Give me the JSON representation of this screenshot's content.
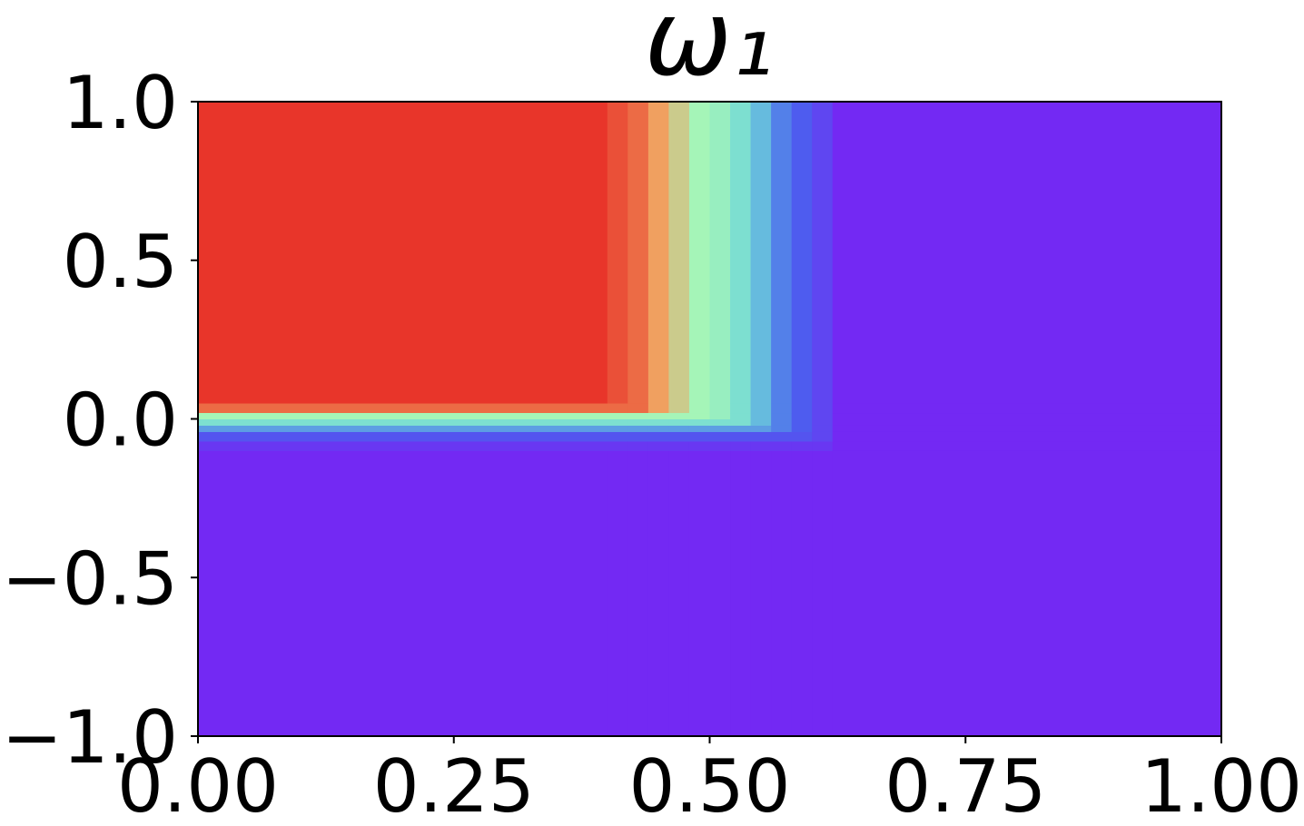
{
  "chart_data": {
    "type": "heatmap",
    "title": "ω₁",
    "x": [
      0,
      0.4,
      0.42,
      0.44,
      0.46,
      0.48,
      0.5,
      0.52,
      0.54,
      0.56,
      0.58,
      0.6,
      0.62,
      1.0
    ],
    "y": [
      -1,
      -0.1,
      -0.07,
      -0.04,
      -0.02,
      0,
      0.02,
      0.05,
      1.0
    ],
    "z": [
      [
        0,
        0,
        0,
        0,
        0,
        0,
        0,
        0,
        0,
        0,
        0,
        0,
        0
      ],
      [
        0.05,
        0.05,
        0.05,
        0.05,
        0.05,
        0.05,
        0.05,
        0.05,
        0.05,
        0.05,
        0.05,
        0.05,
        0
      ],
      [
        0.15,
        0.15,
        0.15,
        0.15,
        0.15,
        0.15,
        0.15,
        0.15,
        0.15,
        0.15,
        0.15,
        0.1,
        0
      ],
      [
        0.3,
        0.3,
        0.3,
        0.3,
        0.3,
        0.3,
        0.3,
        0.3,
        0.3,
        0.25,
        0.18,
        0.1,
        0
      ],
      [
        0.45,
        0.45,
        0.45,
        0.45,
        0.45,
        0.45,
        0.45,
        0.45,
        0.35,
        0.25,
        0.18,
        0.1,
        0
      ],
      [
        0.6,
        0.6,
        0.6,
        0.6,
        0.6,
        0.6,
        0.55,
        0.45,
        0.35,
        0.25,
        0.18,
        0.1,
        0
      ],
      [
        0.9,
        0.9,
        0.9,
        0.8,
        0.7,
        0.6,
        0.55,
        0.45,
        0.35,
        0.25,
        0.18,
        0.1,
        0
      ],
      [
        1,
        0.95,
        0.9,
        0.8,
        0.7,
        0.6,
        0.55,
        0.45,
        0.35,
        0.25,
        0.18,
        0.1,
        0
      ]
    ],
    "colormap": [
      "#7329f3",
      "#4a62ee",
      "#6fd8d8",
      "#a5f5b8",
      "#f0a060",
      "#e8352a"
    ],
    "xlim": [
      0,
      1
    ],
    "xticks": [
      {
        "value": 0,
        "label": "0.00"
      },
      0.25,
      {
        "value": 0.5,
        "label": "0.50"
      },
      0.75,
      {
        "value": 1,
        "label": "1.00"
      }
    ],
    "ylim": [
      -1,
      1
    ],
    "yticks": [
      {
        "value": -1,
        "label": "−1.0"
      },
      {
        "value": -0.5,
        "label": "−0.5"
      },
      {
        "value": 0,
        "label": "0.0"
      },
      0.5,
      {
        "value": 1,
        "label": "1.0"
      }
    ]
  }
}
